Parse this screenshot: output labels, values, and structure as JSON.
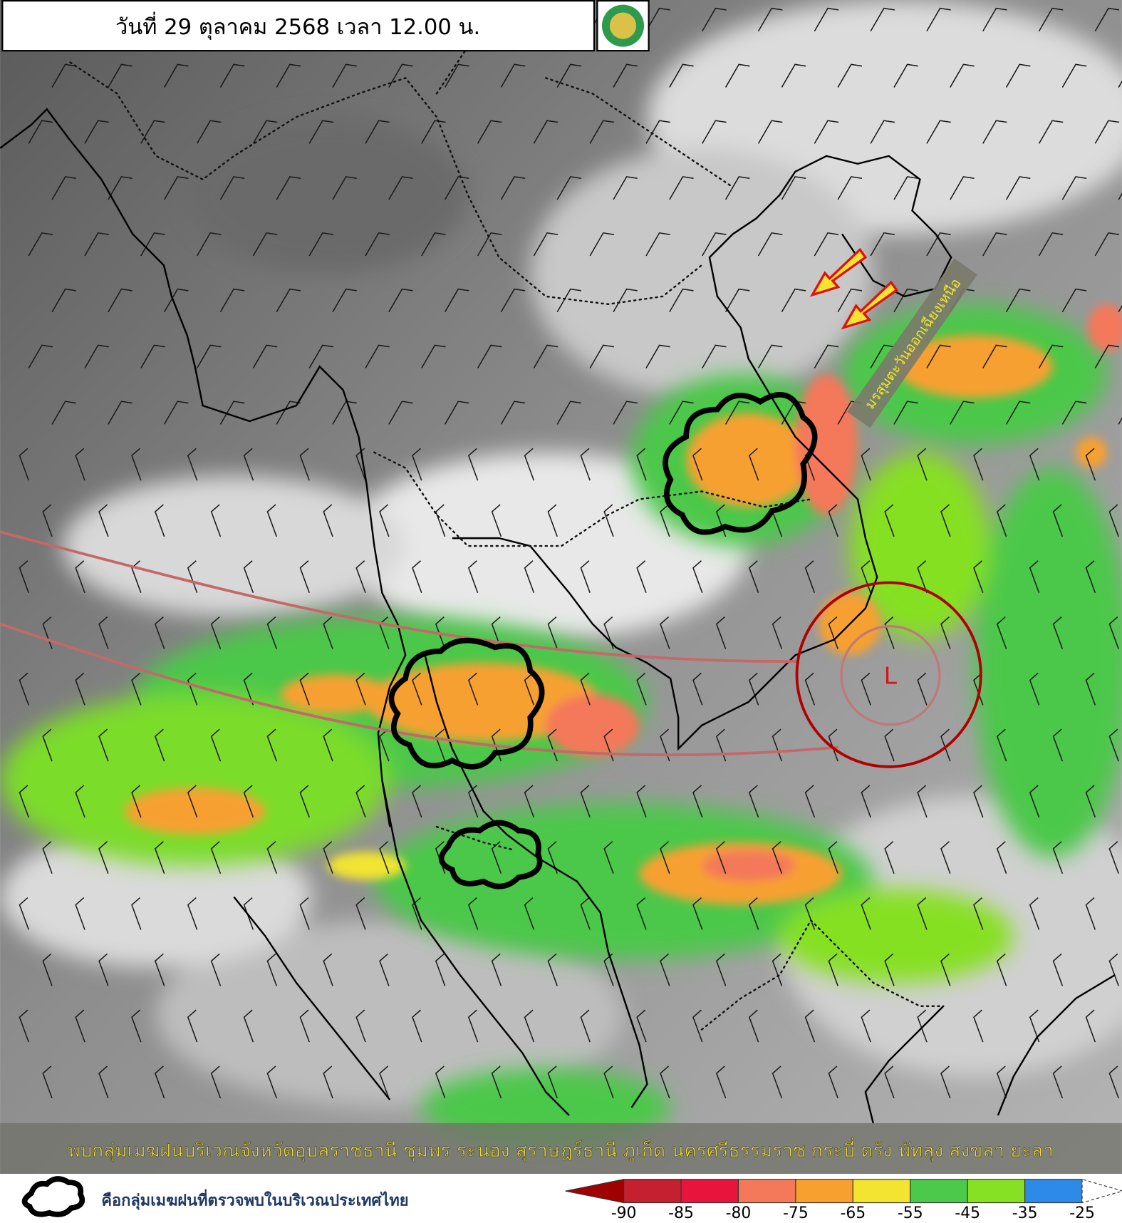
{
  "header": {
    "title": "วันที่ 29 ตุลาคม 2568 เวลา 12.00 น."
  },
  "map": {
    "monsoon_label": "มรสุมตะวันออกเฉียงเหนือ",
    "low_label": "L"
  },
  "caption": "พบกลุ่มเมฆฝนบริเวณจังหวัดอุบลราชธานี ชุมพร ระนอง สุราษฎร์ธานี ภูเก็ต นครศรีธรรมราช กระบี่ ตรัง พัทลุง สงขลา ยะลา",
  "legend": {
    "label": "คือกลุ่มเมฆฝนที่ตรวจพบในบริเวณประเทศไทย"
  },
  "colorbar": {
    "ticks": [
      -90,
      -85,
      -80,
      -75,
      -65,
      -55,
      -45,
      -35,
      -25
    ],
    "colors": [
      "#a00000",
      "#c42030",
      "#e8143c",
      "#f4785a",
      "#f7a030",
      "#f2e430",
      "#4cc84a",
      "#86e024",
      "#2e8ae8",
      "#ffffff"
    ]
  }
}
